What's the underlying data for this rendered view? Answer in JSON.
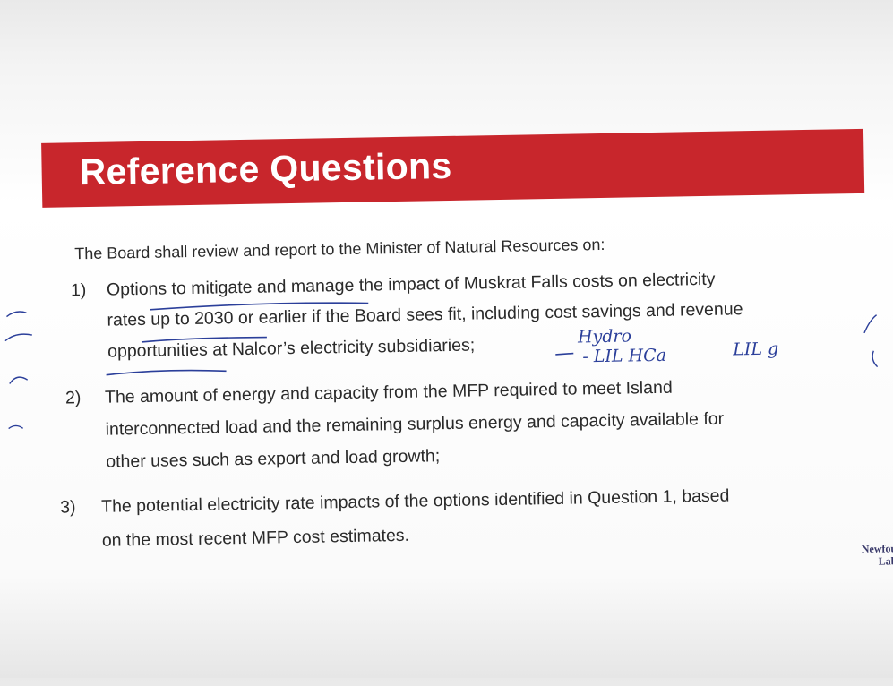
{
  "document": {
    "title": "Reference Questions",
    "intro": "The Board shall review and report to the Minister of Natural Resources on:",
    "items": [
      {
        "number": "1)",
        "lines": [
          "Options to mitigate and manage the impact of Muskrat Falls costs on electricity",
          "rates up to 2030 or earlier if the Board sees fit, including cost savings and revenue",
          "opportunities at Nalcor’s electricity subsidiaries;"
        ]
      },
      {
        "number": "2)",
        "lines": [
          "The amount of energy and capacity from the MFP required to meet Island",
          "interconnected load and the remaining surplus energy and capacity available for",
          "other uses such as export and load growth;"
        ]
      },
      {
        "number": "3)",
        "lines": [
          "The potential electricity rate impacts of the options identified in Question 1, based",
          "on the most recent MFP cost estimates."
        ]
      }
    ],
    "handwritten_notes": [
      "Hydro",
      "- LIL HCa",
      "LIL g"
    ],
    "logo_lines": [
      "Newfou",
      "Lab"
    ]
  }
}
